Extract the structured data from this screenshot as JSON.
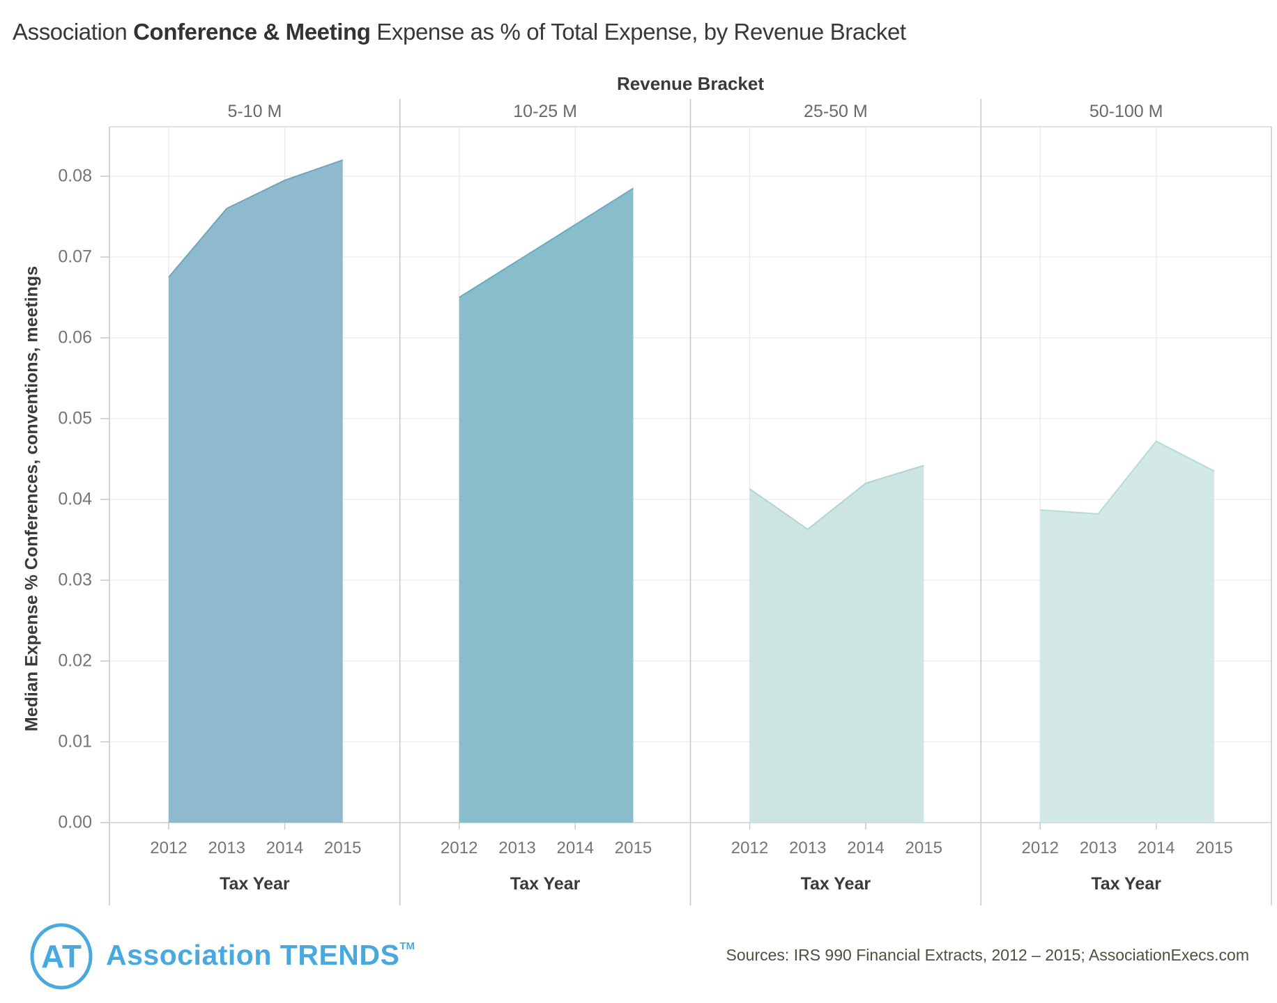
{
  "title": {
    "prefix": "Association ",
    "highlight": "Conference & Meeting",
    "suffix": " Expense as % of Total Expense, by Revenue Bracket"
  },
  "chart_data": {
    "type": "area",
    "facet_title": "Revenue Bracket",
    "x_title": "Tax Year",
    "y_title": "Median Expense % Conferences, conventions, meetings",
    "years": [
      "2012",
      "2013",
      "2014",
      "2015"
    ],
    "y_ticks": [
      "0.00",
      "0.01",
      "0.02",
      "0.03",
      "0.04",
      "0.05",
      "0.06",
      "0.07",
      "0.08"
    ],
    "ylim": [
      0,
      0.086
    ],
    "grid": "on",
    "panels": [
      {
        "bracket": "5-10 M",
        "fill": "#85b3c8",
        "edge": "#6fa6bf",
        "values": [
          0.0675,
          0.076,
          0.0795,
          0.082
        ]
      },
      {
        "bracket": "10-25 M",
        "fill": "#7eb8c8",
        "edge": "#69acbe",
        "values": [
          0.065,
          0.0695,
          0.074,
          0.0785
        ]
      },
      {
        "bracket": "25-50 M",
        "fill": "#c9e3e0",
        "edge": "#b0d5d2",
        "values": [
          0.0413,
          0.0363,
          0.042,
          0.0442
        ]
      },
      {
        "bracket": "50-100 M",
        "fill": "#cee7e3",
        "edge": "#b6dbd6",
        "values": [
          0.0387,
          0.0382,
          0.0472,
          0.0435
        ]
      }
    ]
  },
  "footer": {
    "logo_initials": "AT",
    "brand_color": "#49a9de",
    "brand_word1": "Association",
    "brand_word2": "TRENDS",
    "brand_tm": "TM",
    "sources": "Sources: IRS 990 Financial Extracts, 2012 – 2015; AssociationExecs.com"
  }
}
